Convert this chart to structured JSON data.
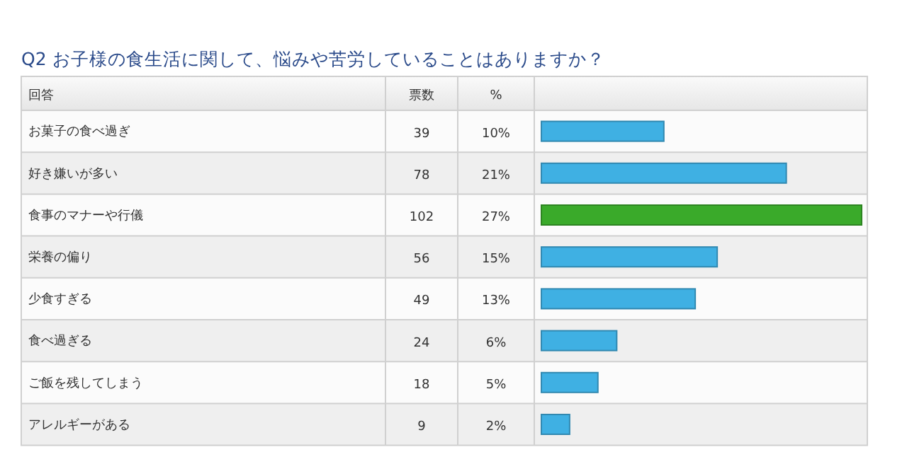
{
  "chart_data": {
    "type": "bar",
    "orientation": "horizontal",
    "title": "Q2 お子様の食生活に関して、悩みや苦労していることはありますか？",
    "ylabel": "回答",
    "xlabel": "票数",
    "categories": [
      "お菓子の食べ過ぎ",
      "好き嫌いが多い",
      "食事のマナーや行儀",
      "栄養の偏り",
      "少食すぎる",
      "食べ過ぎる",
      "ご飯を残してしまう",
      "アレルギーがある"
    ],
    "values": [
      39,
      78,
      102,
      56,
      49,
      24,
      18,
      9
    ],
    "colors": [
      "#3fb0e3",
      "#3fb0e3",
      "#3aaa2a",
      "#3fb0e3",
      "#3fb0e3",
      "#3fb0e3",
      "#3fb0e3",
      "#3fb0e3"
    ],
    "xlim": [
      0,
      102
    ],
    "data_labels": true,
    "annotations": [
      "%",
      "10%",
      "21%",
      "27%",
      "15%",
      "13%",
      "6%",
      "5%",
      "2%"
    ]
  }
}
